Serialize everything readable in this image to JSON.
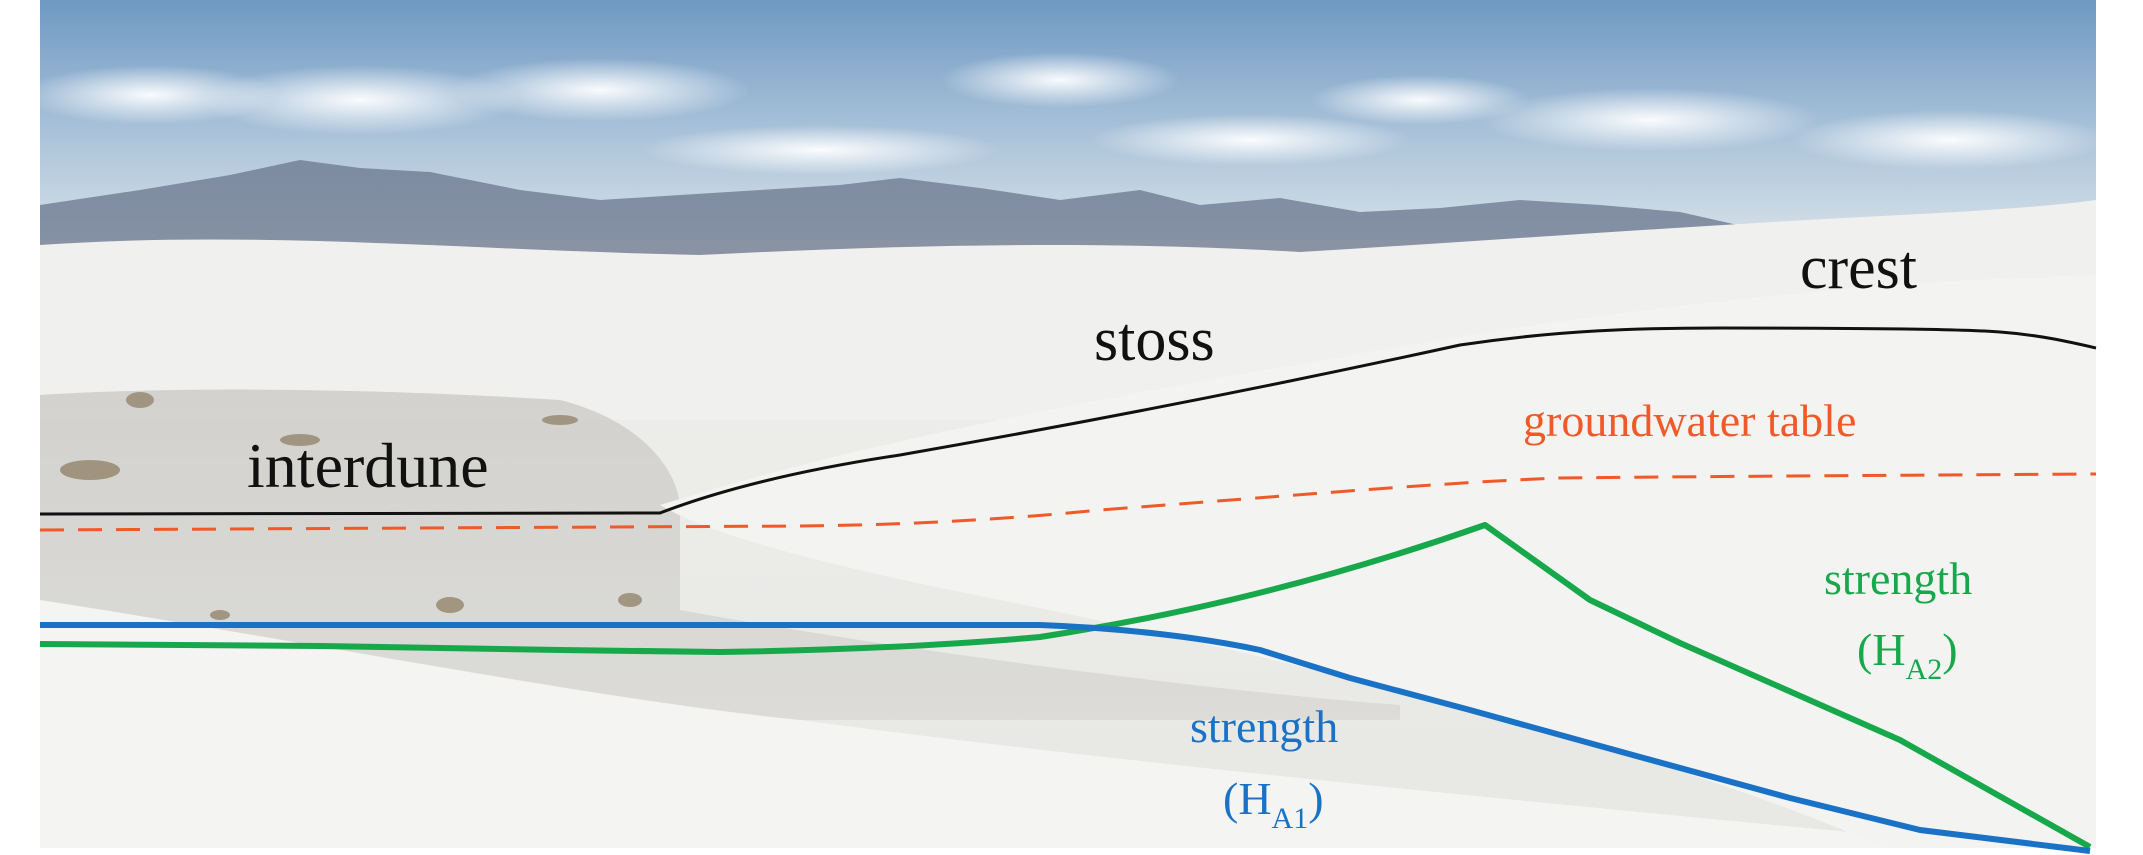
{
  "labels": {
    "crest": "crest",
    "stoss": "stoss",
    "interdune": "interdune",
    "groundwater_table": "groundwater table",
    "strength_a1_word": "strength",
    "strength_a1_open": "(H",
    "strength_a1_sub": "A1",
    "strength_a1_close": ")",
    "strength_a2_word": "strength",
    "strength_a2_open": "(H",
    "strength_a2_sub": "A2",
    "strength_a2_close": ")"
  },
  "colors": {
    "surface": "#111111",
    "groundwater": "#f05a28",
    "strength_a1": "#1a72c6",
    "strength_a2": "#16a84a",
    "sky_top": "#7fa6cc",
    "sand": "#ececea"
  },
  "background": "photograph of white gypsum dunes under a blue sky with distant mountains"
}
